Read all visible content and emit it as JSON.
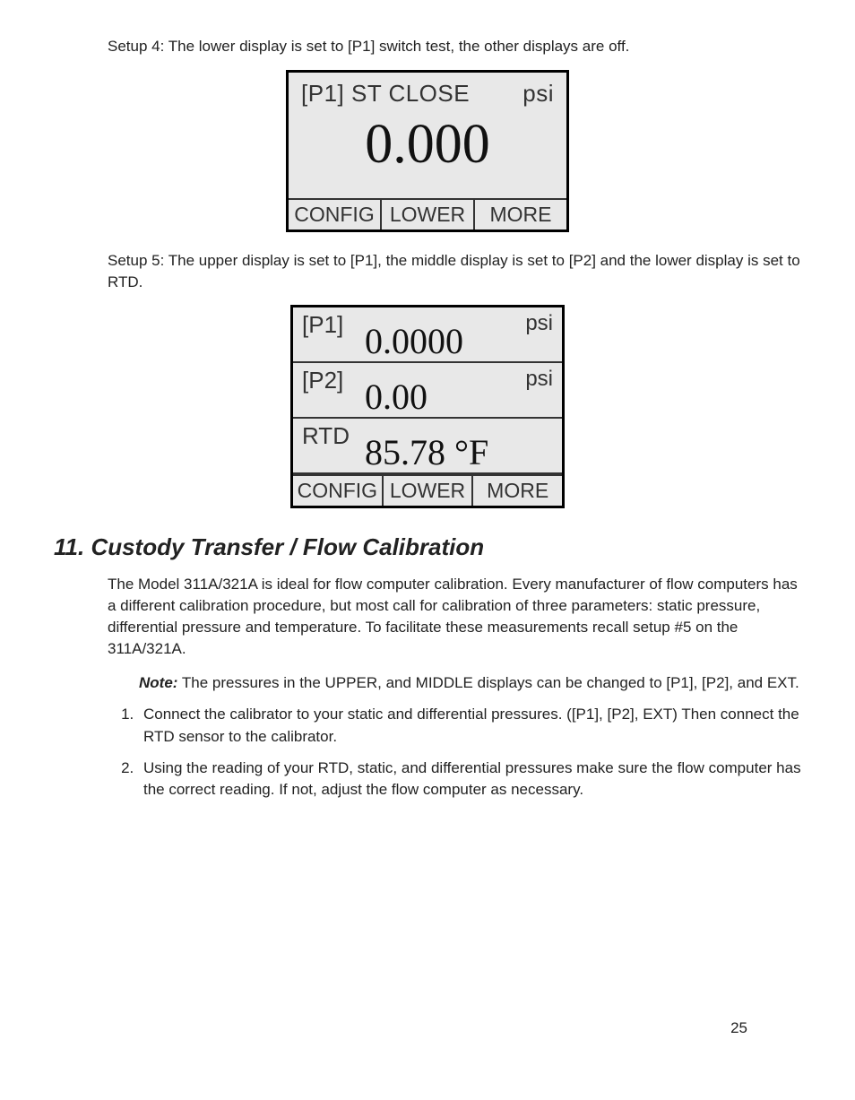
{
  "setup4": {
    "intro": "Setup 4: The lower display is set to [P1] switch test, the other displays are off.",
    "top_left": "[P1] ST CLOSE",
    "top_right": "psi",
    "main_value": "0.000",
    "buttons": {
      "b1": "CONFIG",
      "b2": "LOWER",
      "b3": "MORE"
    },
    "box_bg": "#e8e8e8",
    "border_color": "#000000",
    "label_font": "Arial Narrow",
    "value_font": "Times New Roman"
  },
  "setup5": {
    "intro": "Setup 5: The upper display is set to [P1], the middle display is set to [P2] and the lower display is set to RTD.",
    "rows": {
      "r1": {
        "label": "[P1]",
        "value": "0.0000",
        "unit": "psi"
      },
      "r2": {
        "label": "[P2]",
        "value": "0.00",
        "unit": "psi"
      },
      "r3": {
        "label": "RTD",
        "value": "85.78 °F",
        "unit": ""
      }
    },
    "buttons": {
      "b1": "CONFIG",
      "b2": "LOWER",
      "b3": "MORE"
    }
  },
  "section": {
    "heading": "11. Custody Transfer / Flow Calibration",
    "para": "The Model 311A/321A is ideal for flow computer calibration. Every manufacturer of flow computers has a different calibration procedure, but most call for calibration of three parameters: static pressure, differential pressure and temperature. To facilitate these measurements recall setup #5 on the 311A/321A.",
    "note_label": "Note:",
    "note_text": "  The pressures in the UPPER, and MIDDLE displays can be changed to [P1], [P2],  and EXT.",
    "step1": "Connect the calibrator to your static and differential pressures. ([P1], [P2], EXT) Then connect the RTD sensor to the calibrator.",
    "step2": "Using the reading of your RTD, static, and differential pressures make sure the flow computer has the correct reading.  If not, adjust the flow computer as necessary."
  },
  "page_number": "25"
}
